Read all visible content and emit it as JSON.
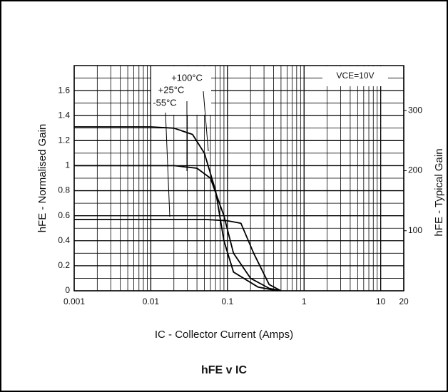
{
  "chart_data": {
    "type": "line",
    "title": "hFE v IC",
    "xlabel": "IC - Collector Current (Amps)",
    "ylabel": "hFE - Normalised Gain",
    "y2label": "hFE - Typical Gain",
    "annotations": [
      "+100°C",
      "+25°C",
      "-55°C",
      "VCE=10V"
    ],
    "xscale": "log",
    "xlim": [
      0.001,
      20
    ],
    "xticks": [
      0.001,
      0.01,
      0.1,
      1,
      10,
      20
    ],
    "ylim": [
      0,
      1.8
    ],
    "yticks": [
      0,
      0.2,
      0.4,
      0.6,
      0.8,
      1.0,
      1.2,
      1.4,
      1.6
    ],
    "y2lim": [
      0,
      375
    ],
    "y2ticks": [
      100,
      200,
      300
    ],
    "grid": true,
    "series": [
      {
        "name": "+100°C",
        "color": "#000000",
        "x": [
          0.001,
          0.01,
          0.02,
          0.035,
          0.05,
          0.07,
          0.09,
          0.12,
          0.25,
          0.45
        ],
        "values": [
          1.31,
          1.31,
          1.3,
          1.25,
          1.1,
          0.8,
          0.4,
          0.15,
          0.03,
          0
        ]
      },
      {
        "name": "+25°C",
        "color": "#000000",
        "x": [
          0.001,
          0.02,
          0.04,
          0.06,
          0.09,
          0.12,
          0.2,
          0.35,
          0.5
        ],
        "values": [
          1.0,
          1.0,
          0.98,
          0.9,
          0.6,
          0.3,
          0.1,
          0.02,
          0
        ]
      },
      {
        "name": "-55°C",
        "color": "#000000",
        "x": [
          0.001,
          0.05,
          0.1,
          0.15,
          0.22,
          0.35,
          0.5
        ],
        "values": [
          0.57,
          0.57,
          0.56,
          0.54,
          0.3,
          0.05,
          0
        ]
      }
    ]
  }
}
